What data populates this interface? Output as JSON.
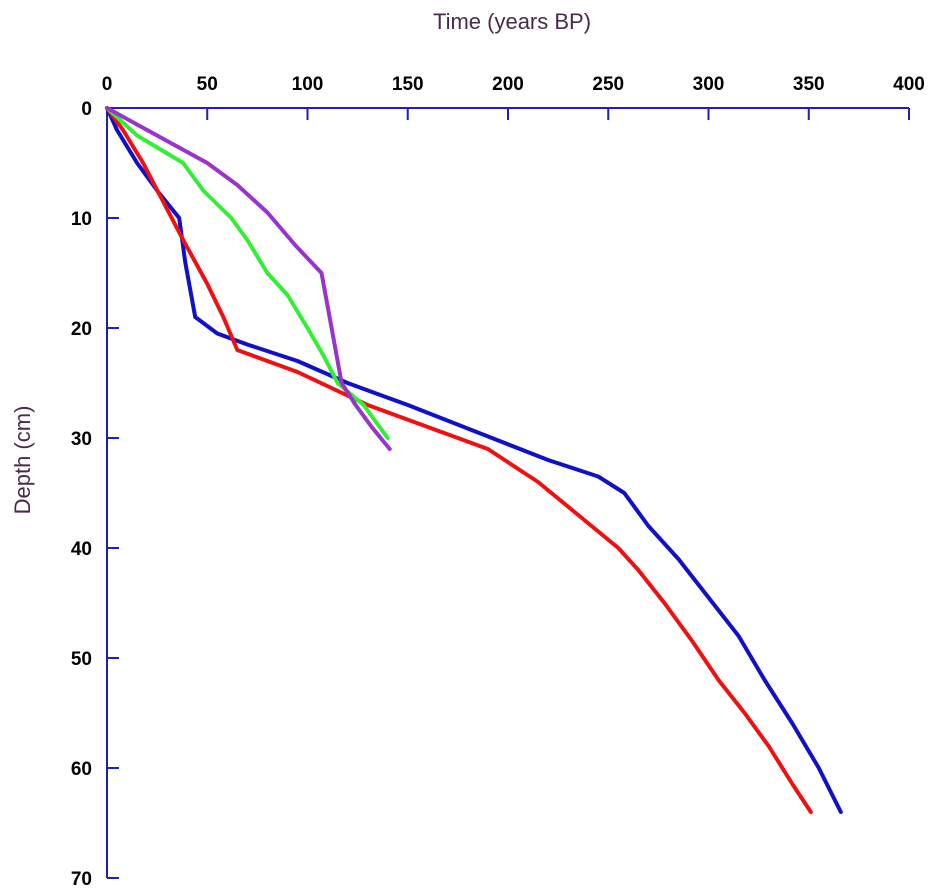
{
  "chart_data": {
    "type": "line",
    "title": "",
    "xlabel": "Time (years BP)",
    "ylabel": "Depth (cm)",
    "x_axis_position": "top",
    "y_inverted": true,
    "xlim": [
      0,
      400
    ],
    "ylim": [
      0,
      70
    ],
    "x_ticks": [
      0,
      50,
      100,
      150,
      200,
      250,
      300,
      350,
      400
    ],
    "y_ticks": [
      0,
      10,
      20,
      30,
      40,
      50,
      60,
      70
    ],
    "grid": false,
    "legend": "none",
    "axis_color": "#1f1fb4",
    "series": [
      {
        "color": "#1010c8",
        "points": [
          [
            0,
            0
          ],
          [
            5,
            2
          ],
          [
            15,
            5
          ],
          [
            25,
            7.5
          ],
          [
            36,
            10
          ],
          [
            39,
            14
          ],
          [
            44,
            19
          ],
          [
            55,
            20.5
          ],
          [
            70,
            21.5
          ],
          [
            95,
            23
          ],
          [
            120,
            25
          ],
          [
            150,
            27
          ],
          [
            185,
            29.5
          ],
          [
            220,
            32
          ],
          [
            245,
            33.5
          ],
          [
            258,
            35
          ],
          [
            270,
            38
          ],
          [
            285,
            41
          ],
          [
            300,
            44.5
          ],
          [
            315,
            48
          ],
          [
            328,
            52
          ],
          [
            342,
            56
          ],
          [
            355,
            60
          ],
          [
            366,
            64
          ]
        ]
      },
      {
        "color": "#ee1111",
        "points": [
          [
            0,
            0
          ],
          [
            8,
            2
          ],
          [
            18,
            5
          ],
          [
            28,
            8.5
          ],
          [
            38,
            12
          ],
          [
            50,
            16
          ],
          [
            58,
            19
          ],
          [
            65,
            22
          ],
          [
            95,
            24
          ],
          [
            130,
            27
          ],
          [
            160,
            29
          ],
          [
            190,
            31
          ],
          [
            215,
            34
          ],
          [
            235,
            37
          ],
          [
            255,
            40
          ],
          [
            265,
            42
          ],
          [
            278,
            45
          ],
          [
            292,
            48.5
          ],
          [
            305,
            52
          ],
          [
            318,
            55
          ],
          [
            330,
            58
          ],
          [
            342,
            61.5
          ],
          [
            351,
            64
          ]
        ]
      },
      {
        "color": "#33ee33",
        "points": [
          [
            0,
            0
          ],
          [
            15,
            2.5
          ],
          [
            38,
            5
          ],
          [
            48,
            7.5
          ],
          [
            62,
            10
          ],
          [
            70,
            12
          ],
          [
            80,
            15
          ],
          [
            90,
            17
          ],
          [
            100,
            20
          ],
          [
            108,
            22.5
          ],
          [
            115,
            25
          ],
          [
            128,
            27
          ],
          [
            140,
            30
          ]
        ]
      },
      {
        "color": "#9933cc",
        "points": [
          [
            0,
            0
          ],
          [
            25,
            2.5
          ],
          [
            50,
            5
          ],
          [
            65,
            7
          ],
          [
            80,
            9.5
          ],
          [
            94,
            12.5
          ],
          [
            107,
            15
          ],
          [
            112,
            20
          ],
          [
            117,
            25
          ],
          [
            124,
            27
          ],
          [
            132,
            29
          ],
          [
            141,
            31
          ]
        ]
      }
    ]
  }
}
